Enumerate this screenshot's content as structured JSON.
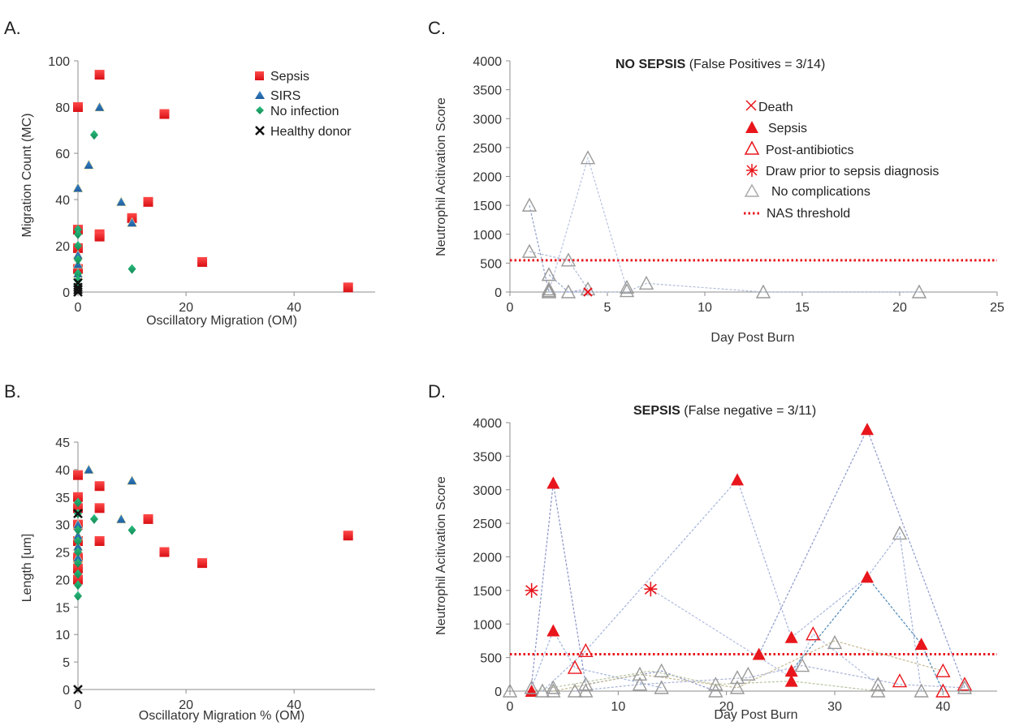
{
  "chart_data": [
    {
      "panel": "A.",
      "type": "scatter",
      "xlabel": "Oscillatory Migration (OM)",
      "ylabel": "Migration Count (MC)",
      "xlim": [
        0,
        55
      ],
      "ylim": [
        0,
        100
      ],
      "xticks": [
        0,
        20,
        40
      ],
      "yticks": [
        0,
        20,
        40,
        60,
        80,
        100
      ],
      "legend_position": "top-right",
      "series": [
        {
          "name": "Sepsis",
          "marker": "square",
          "color": "#e8161c",
          "points": [
            [
              0,
              80
            ],
            [
              4,
              94
            ],
            [
              16,
              77
            ],
            [
              13,
              39
            ],
            [
              10,
              32
            ],
            [
              4,
              25
            ],
            [
              4,
              24
            ],
            [
              23,
              13
            ],
            [
              50,
              2
            ],
            [
              0,
              27
            ],
            [
              0,
              19
            ],
            [
              0,
              10
            ]
          ]
        },
        {
          "name": "SIRS",
          "marker": "triangle",
          "color": "#2f73b5",
          "points": [
            [
              4,
              80
            ],
            [
              2,
              55
            ],
            [
              0,
              45
            ],
            [
              8,
              39
            ],
            [
              10,
              30
            ],
            [
              0,
              16
            ],
            [
              0,
              12
            ],
            [
              0,
              8
            ]
          ]
        },
        {
          "name": "No infection",
          "marker": "diamond",
          "color": "#1d9f6a",
          "points": [
            [
              3,
              68
            ],
            [
              10,
              10
            ],
            [
              0,
              27
            ],
            [
              0,
              25
            ],
            [
              0,
              20
            ],
            [
              0,
              14
            ],
            [
              0,
              8
            ],
            [
              0,
              5
            ],
            [
              0,
              2
            ]
          ]
        },
        {
          "name": "Healthy donor",
          "marker": "x",
          "color": "#111111",
          "points": [
            [
              0,
              4
            ],
            [
              0,
              2
            ],
            [
              0,
              0
            ],
            [
              0,
              1
            ]
          ]
        }
      ]
    },
    {
      "panel": "B.",
      "type": "scatter",
      "xlabel": "Oscillatory Migration % (OM)",
      "ylabel": "Length [um]",
      "xlim": [
        0,
        55
      ],
      "ylim": [
        0,
        45
      ],
      "xticks": [
        0,
        20,
        40
      ],
      "yticks": [
        0,
        5,
        10,
        15,
        20,
        25,
        30,
        35,
        40,
        45
      ],
      "series": [
        {
          "name": "Sepsis",
          "marker": "square",
          "color": "#e8161c",
          "points": [
            [
              0,
              39
            ],
            [
              0,
              35
            ],
            [
              0,
              33
            ],
            [
              0,
              30
            ],
            [
              0,
              27
            ],
            [
              0,
              24
            ],
            [
              0,
              22
            ],
            [
              0,
              20
            ],
            [
              4,
              37
            ],
            [
              4,
              33
            ],
            [
              4,
              27
            ],
            [
              13,
              31
            ],
            [
              16,
              25
            ],
            [
              23,
              23
            ],
            [
              50,
              28
            ]
          ]
        },
        {
          "name": "SIRS",
          "marker": "triangle",
          "color": "#2f73b5",
          "points": [
            [
              2,
              40
            ],
            [
              10,
              38
            ],
            [
              8,
              31
            ],
            [
              0,
              30
            ],
            [
              0,
              28
            ],
            [
              0,
              26
            ],
            [
              0,
              24
            ]
          ]
        },
        {
          "name": "No infection",
          "marker": "diamond",
          "color": "#1d9f6a",
          "points": [
            [
              3,
              31
            ],
            [
              10,
              29
            ],
            [
              0,
              34
            ],
            [
              0,
              32
            ],
            [
              0,
              29
            ],
            [
              0,
              27
            ],
            [
              0,
              25
            ],
            [
              0,
              23
            ],
            [
              0,
              21
            ],
            [
              0,
              19
            ],
            [
              0,
              17
            ]
          ]
        },
        {
          "name": "Healthy donor",
          "marker": "x",
          "color": "#111111",
          "points": [
            [
              0,
              32
            ],
            [
              0,
              0
            ]
          ]
        }
      ]
    },
    {
      "panel": "C.",
      "type": "line",
      "title_bold": "NO SEPSIS",
      "title_rest": " (False Positives = 3/14)",
      "xlabel": "Day Post Burn",
      "ylabel": "Neutrophil Acitivation Score",
      "xlim": [
        0,
        25
      ],
      "ylim": [
        0,
        4000
      ],
      "xticks": [
        0,
        5,
        10,
        15,
        20,
        25
      ],
      "yticks": [
        0,
        500,
        1000,
        1500,
        2000,
        2500,
        3000,
        3500,
        4000
      ],
      "threshold": 550,
      "legend": [
        {
          "label": "Death",
          "marker": "x",
          "color": "#e8161c"
        },
        {
          "label": "Sepsis",
          "marker": "tri-filled",
          "color": "#e8161c"
        },
        {
          "label": "Post-antibiotics",
          "marker": "tri-open",
          "color": "#e8161c"
        },
        {
          "label": "Draw prior to sepsis diagnosis",
          "marker": "asterisk",
          "color": "#e8161c"
        },
        {
          "label": "No complications",
          "marker": "tri-open",
          "color": "#aaaaaa"
        },
        {
          "label": "NAS threshold",
          "marker": "dotted",
          "color": "#e8161c"
        }
      ],
      "patients": [
        {
          "color": "#8fa0c8",
          "points": [
            [
              1,
              1500
            ],
            [
              2,
              0
            ],
            [
              4,
              0
            ]
          ]
        },
        {
          "color": "#b7c3e0",
          "points": [
            [
              2,
              0
            ],
            [
              4,
              2320
            ],
            [
              6,
              50
            ]
          ]
        },
        {
          "color": "#a9b6d6",
          "points": [
            [
              1,
              700
            ],
            [
              3,
              550
            ],
            [
              4,
              50
            ]
          ]
        },
        {
          "color": "#9aa9cc",
          "points": [
            [
              2,
              300
            ],
            [
              3,
              0
            ],
            [
              4,
              50
            ]
          ]
        },
        {
          "color": "#b2bcd9",
          "points": [
            [
              2,
              0
            ],
            [
              6,
              0
            ],
            [
              7,
              150
            ],
            [
              13,
              0
            ],
            [
              21,
              0
            ]
          ]
        }
      ],
      "markers": [
        {
          "type": "no-complications",
          "points": [
            [
              1,
              1500
            ],
            [
              1,
              700
            ],
            [
              2,
              300
            ],
            [
              2,
              50
            ],
            [
              2,
              20
            ],
            [
              2,
              0
            ],
            [
              3,
              550
            ],
            [
              3,
              0
            ],
            [
              4,
              2320
            ],
            [
              4,
              50
            ],
            [
              6,
              80
            ],
            [
              6,
              20
            ],
            [
              7,
              150
            ],
            [
              13,
              0
            ],
            [
              21,
              0
            ]
          ]
        },
        {
          "type": "death",
          "points": [
            [
              4,
              0
            ]
          ]
        }
      ]
    },
    {
      "panel": "D.",
      "type": "line",
      "title_bold": "SEPSIS",
      "title_rest": " (False negative = 3/11)",
      "xlabel": "Day Post Burn",
      "ylabel": "Neutrophil Acitivation Score",
      "xlim": [
        0,
        45
      ],
      "ylim": [
        0,
        4000
      ],
      "xticks": [
        0,
        10,
        20,
        30,
        40
      ],
      "yticks": [
        0,
        500,
        1000,
        1500,
        2000,
        2500,
        3000,
        3500,
        4000
      ],
      "threshold": 550,
      "patients": [
        {
          "color": "#8c95c8",
          "points": [
            [
              2,
              100
            ],
            [
              4,
              3100
            ],
            [
              7,
              100
            ],
            [
              14,
              300
            ],
            [
              19,
              0
            ]
          ]
        },
        {
          "color": "#9fb4de",
          "points": [
            [
              2,
              50
            ],
            [
              4,
              900
            ],
            [
              6,
              350
            ],
            [
              14,
              50
            ]
          ]
        },
        {
          "color": "#a5b3da",
          "points": [
            [
              3,
              0
            ],
            [
              7,
              600
            ],
            [
              21,
              3150
            ],
            [
              26,
              800
            ],
            [
              33,
              1700
            ],
            [
              36,
              2350
            ],
            [
              38,
              0
            ]
          ]
        },
        {
          "color": "#b1bde0",
          "points": [
            [
              13,
              1520
            ],
            [
              26,
              200
            ],
            [
              28,
              850
            ],
            [
              34,
              100
            ]
          ]
        },
        {
          "color": "#8e9bcc",
          "points": [
            [
              23,
              550
            ],
            [
              33,
              3900
            ],
            [
              42,
              50
            ]
          ]
        },
        {
          "color": "#4a86b8",
          "points": [
            [
              26,
              300
            ],
            [
              33,
              1700
            ],
            [
              38,
              700
            ],
            [
              40,
              0
            ]
          ]
        },
        {
          "color": "#b6c4a0",
          "points": [
            [
              2,
              0
            ],
            [
              13,
              300
            ],
            [
              19,
              100
            ],
            [
              26,
              150
            ],
            [
              34,
              0
            ]
          ]
        },
        {
          "color": "#c4b98f",
          "points": [
            [
              4,
              0
            ],
            [
              12,
              250
            ],
            [
              21,
              50
            ],
            [
              30,
              750
            ],
            [
              40,
              300
            ]
          ]
        },
        {
          "color": "#a9b2d6",
          "points": [
            [
              6,
              0
            ],
            [
              12,
              100
            ],
            [
              22,
              200
            ],
            [
              27,
              380
            ],
            [
              36,
              100
            ],
            [
              42,
              50
            ]
          ]
        }
      ],
      "markers": [
        {
          "type": "sepsis",
          "points": [
            [
              2,
              0
            ],
            [
              4,
              3100
            ],
            [
              4,
              900
            ],
            [
              21,
              3150
            ],
            [
              23,
              550
            ],
            [
              26,
              800
            ],
            [
              26,
              300
            ],
            [
              26,
              150
            ],
            [
              33,
              3900
            ],
            [
              33,
              1700
            ],
            [
              38,
              700
            ]
          ]
        },
        {
          "type": "post-antibiotics",
          "points": [
            [
              6,
              350
            ],
            [
              7,
              600
            ],
            [
              28,
              850
            ],
            [
              36,
              150
            ],
            [
              40,
              300
            ],
            [
              40,
              0
            ],
            [
              42,
              100
            ]
          ]
        },
        {
          "type": "draw-prior",
          "points": [
            [
              2,
              1500
            ],
            [
              13,
              1520
            ]
          ]
        },
        {
          "type": "no-complications",
          "points": [
            [
              0,
              0
            ],
            [
              2,
              50
            ],
            [
              3,
              0
            ],
            [
              4,
              50
            ],
            [
              4,
              0
            ],
            [
              6,
              0
            ],
            [
              7,
              100
            ],
            [
              7,
              0
            ],
            [
              12,
              250
            ],
            [
              12,
              100
            ],
            [
              14,
              300
            ],
            [
              14,
              50
            ],
            [
              19,
              100
            ],
            [
              19,
              0
            ],
            [
              21,
              200
            ],
            [
              21,
              50
            ],
            [
              22,
              250
            ],
            [
              27,
              380
            ],
            [
              30,
              720
            ],
            [
              34,
              100
            ],
            [
              34,
              0
            ],
            [
              36,
              2350
            ],
            [
              38,
              0
            ],
            [
              42,
              50
            ]
          ]
        }
      ]
    }
  ]
}
